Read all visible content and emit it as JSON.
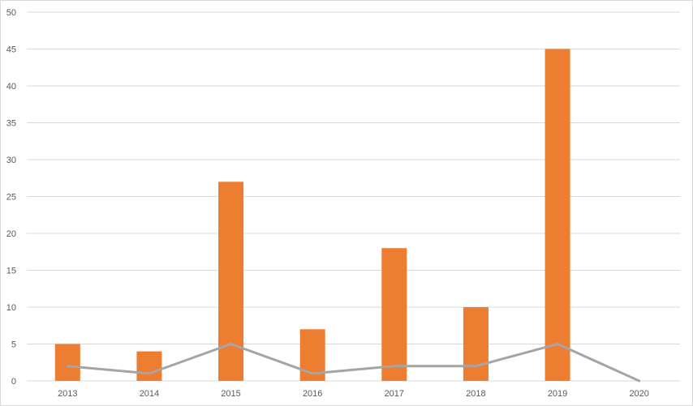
{
  "chart_data": {
    "type": "bar",
    "categories": [
      "2013",
      "2014",
      "2015",
      "2016",
      "2017",
      "2018",
      "2019",
      "2020"
    ],
    "series": [
      {
        "type": "bar",
        "values": [
          5,
          4,
          27,
          7,
          18,
          10,
          45,
          0
        ]
      },
      {
        "type": "line",
        "values": [
          2,
          1,
          5,
          1,
          2,
          2,
          5,
          0
        ]
      }
    ],
    "ylim": [
      0,
      50
    ],
    "yticks": [
      "0",
      "5",
      "10",
      "15",
      "20",
      "25",
      "30",
      "35",
      "40",
      "45",
      "50"
    ],
    "grid": true,
    "legend": "none",
    "colors": {
      "bar": "#ED7D31",
      "line": "#A5A5A5",
      "grid": "#D9D9D9"
    }
  }
}
